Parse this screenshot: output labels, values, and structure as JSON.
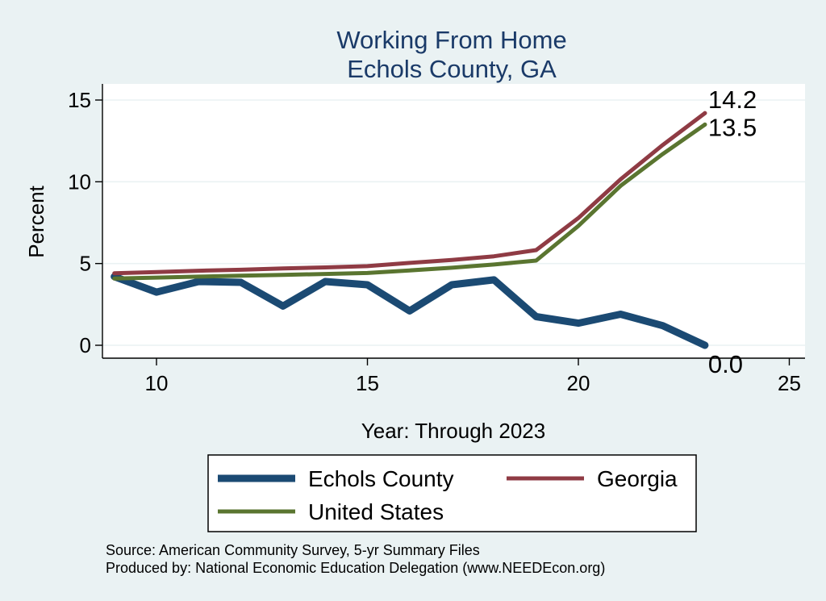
{
  "chart_data": {
    "type": "line",
    "title": "Working From Home",
    "subtitle": "Echols County, GA",
    "xlabel": "Year: Through 2023",
    "ylabel": "Percent",
    "xlim": [
      9,
      25
    ],
    "ylim": [
      0,
      15
    ],
    "x_ticks": [
      10,
      15,
      20,
      25
    ],
    "y_ticks": [
      0,
      5,
      10,
      15
    ],
    "grid": true,
    "legend_position": "bottom",
    "x": [
      9,
      10,
      11,
      12,
      13,
      14,
      15,
      16,
      17,
      18,
      19,
      20,
      21,
      22,
      23
    ],
    "series": [
      {
        "name": "Echols County",
        "color": "#1b4a73",
        "values": [
          4.2,
          3.25,
          3.9,
          3.85,
          2.4,
          3.9,
          3.7,
          2.1,
          3.7,
          4.0,
          1.75,
          1.35,
          1.9,
          1.2,
          0.0
        ],
        "end_label": "0.0"
      },
      {
        "name": "Georgia",
        "color": "#8f3b44",
        "values": [
          4.4,
          4.48,
          4.56,
          4.62,
          4.7,
          4.76,
          4.84,
          5.04,
          5.22,
          5.44,
          5.82,
          7.78,
          10.15,
          12.25,
          14.2
        ],
        "end_label": "14.2"
      },
      {
        "name": "United States",
        "color": "#5a7530",
        "values": [
          4.08,
          4.14,
          4.2,
          4.26,
          4.31,
          4.36,
          4.42,
          4.58,
          4.74,
          4.94,
          5.18,
          7.3,
          9.75,
          11.7,
          13.5
        ],
        "end_label": "13.5"
      }
    ],
    "source_lines": [
      "Source: American Community Survey, 5-yr Summary Files",
      "Produced by: National Economic Education Delegation (www.NEEDEcon.org)"
    ]
  }
}
